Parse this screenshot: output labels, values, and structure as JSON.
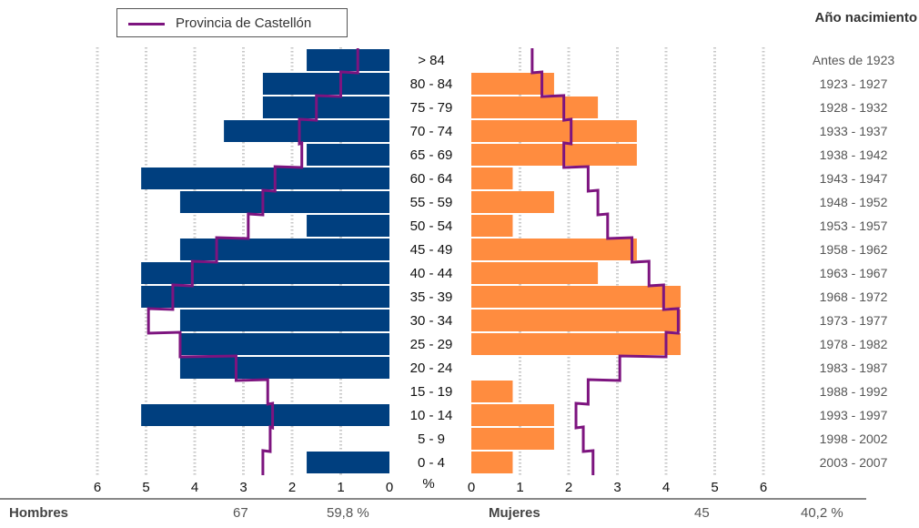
{
  "chart_data": {
    "type": "bar",
    "orientation": "horizontal-pyramid",
    "unit_label": "%",
    "age_groups": [
      "> 84",
      "80 - 84",
      "75 - 79",
      "70 - 74",
      "65 - 69",
      "60 - 64",
      "55 - 59",
      "50 - 54",
      "45 - 49",
      "40 - 44",
      "35 - 39",
      "30 - 34",
      "25 - 29",
      "20 - 24",
      "15 - 19",
      "10 - 14",
      "5 - 9",
      "0 - 4"
    ],
    "birth_years": [
      "Antes de 1923",
      "1923 - 1927",
      "1928 - 1932",
      "1933 - 1937",
      "1938 - 1942",
      "1943 - 1947",
      "1948 - 1952",
      "1953 - 1957",
      "1958 - 1962",
      "1963 - 1967",
      "1968 - 1972",
      "1973 - 1977",
      "1978 - 1982",
      "1983 - 1987",
      "1988 - 1992",
      "1993 - 1997",
      "1998 - 2002",
      "2003 - 2007"
    ],
    "birth_years_title": "Año nacimiento",
    "xlim": [
      0,
      6
    ],
    "left_ticks": [
      "6",
      "5",
      "4",
      "3",
      "2",
      "1",
      "0"
    ],
    "right_ticks": [
      "0",
      "1",
      "2",
      "3",
      "4",
      "5",
      "6"
    ],
    "series": [
      {
        "side": "left",
        "color": "#003f7f",
        "values": [
          1.7,
          2.6,
          2.6,
          3.4,
          1.7,
          5.1,
          4.3,
          1.7,
          4.3,
          5.1,
          5.1,
          4.3,
          4.3,
          4.3,
          0,
          5.1,
          0,
          1.7
        ]
      },
      {
        "side": "right",
        "color": "#ff8c3f",
        "values": [
          0,
          1.7,
          2.6,
          3.4,
          3.4,
          0.85,
          1.7,
          0.85,
          3.4,
          2.6,
          4.3,
          4.3,
          4.3,
          0,
          0.85,
          1.7,
          1.7,
          0.85
        ]
      }
    ],
    "reference": {
      "name": "Provincia de Castellón",
      "color": "#7d147f",
      "left_values": [
        0.65,
        1.0,
        1.5,
        1.85,
        1.8,
        2.35,
        2.6,
        2.9,
        3.55,
        4.05,
        4.45,
        4.95,
        4.3,
        3.15,
        2.5,
        2.4,
        2.45,
        2.6
      ],
      "right_values": [
        1.25,
        1.45,
        1.9,
        2.05,
        1.9,
        2.4,
        2.6,
        2.8,
        3.3,
        3.65,
        3.95,
        4.25,
        4.0,
        3.05,
        2.4,
        2.15,
        2.3,
        2.5
      ]
    },
    "grid": "dotted-vertical"
  },
  "summary": {
    "left": {
      "label": "Hombres",
      "count": "67",
      "pct": "59,8 %"
    },
    "right": {
      "label": "Mujeres",
      "count": "45",
      "pct": "40,2 %"
    }
  }
}
